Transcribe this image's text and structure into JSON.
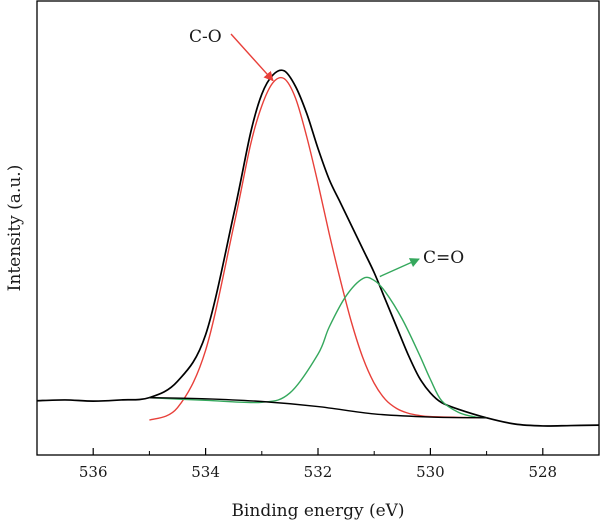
{
  "chart_data": {
    "type": "line",
    "title": "",
    "xlabel": "Binding energy (eV)",
    "ylabel": "Intensity (a.u.)",
    "x_reversed": true,
    "xlim": [
      537,
      527
    ],
    "ylim": [
      0,
      100
    ],
    "grid": false,
    "y_ticks_labeled": false,
    "x_ticks": [
      536,
      534,
      532,
      530,
      528
    ],
    "x_tick_labels": [
      "536",
      "534",
      "532",
      "530",
      "528"
    ],
    "series": [
      {
        "role": "raw-spectrum",
        "color": "#000000",
        "x": [
          537.0,
          536.5,
          536.0,
          535.5,
          535.0,
          534.5,
          534.0,
          533.5,
          533.2,
          533.0,
          532.8,
          532.6,
          532.4,
          532.2,
          532.0,
          531.8,
          531.6,
          531.4,
          531.2,
          531.0,
          530.8,
          530.6,
          530.4,
          530.2,
          530.0,
          529.8,
          529.5,
          529.0,
          528.5,
          528.0,
          527.5,
          527.0
        ],
        "y": [
          6.0,
          6.2,
          5.9,
          6.2,
          6.8,
          11.0,
          23.0,
          54.0,
          75.0,
          85.0,
          90.0,
          91.0,
          87.0,
          80.0,
          71.0,
          63.0,
          57.0,
          51.0,
          45.0,
          39.0,
          32.0,
          25.0,
          18.0,
          12.0,
          8.0,
          5.5,
          3.8,
          1.6,
          0.0,
          -0.5,
          -0.4,
          -0.3
        ]
      },
      {
        "name": "C-O",
        "role": "fit-peak",
        "color": "#e8403a",
        "x": [
          535.0,
          534.5,
          534.0,
          533.5,
          533.2,
          533.0,
          532.8,
          532.6,
          532.4,
          532.2,
          532.0,
          531.8,
          531.6,
          531.4,
          531.2,
          531.0,
          530.8,
          530.6,
          530.4,
          530.2,
          530.0,
          529.5,
          529.0
        ],
        "y": [
          1.0,
          4.2,
          19.0,
          51.0,
          72.0,
          82.0,
          88.0,
          89.0,
          84.0,
          74.0,
          62.0,
          49.0,
          37.0,
          26.0,
          17.0,
          10.5,
          6.3,
          4.0,
          2.8,
          2.2,
          1.9,
          1.7,
          1.6
        ]
      },
      {
        "name": "C=O",
        "role": "fit-peak",
        "color": "#35a85d",
        "x": [
          535.0,
          534.0,
          533.0,
          532.5,
          532.0,
          531.8,
          531.5,
          531.2,
          531.0,
          530.8,
          530.5,
          530.2,
          530.0,
          529.8,
          529.5,
          529.2,
          529.0
        ],
        "y": [
          6.8,
          6.1,
          5.6,
          8.0,
          18.0,
          25.0,
          33.0,
          37.5,
          37.0,
          34.0,
          27.0,
          18.0,
          11.5,
          6.0,
          3.0,
          1.8,
          1.6
        ]
      },
      {
        "role": "background",
        "color": "#000000",
        "x": [
          535.0,
          534.0,
          533.0,
          532.0,
          531.0,
          530.0,
          529.0
        ],
        "y": [
          6.8,
          6.5,
          5.8,
          4.5,
          2.6,
          1.8,
          1.6
        ]
      }
    ],
    "annotations": [
      {
        "text": "C-O",
        "color": "#e8403a",
        "points_to": {
          "x": 532.8,
          "y": 89.0
        }
      },
      {
        "text": "C=O",
        "color": "#35a85d",
        "points_to": {
          "x": 530.9,
          "y": 38.0
        }
      }
    ]
  }
}
